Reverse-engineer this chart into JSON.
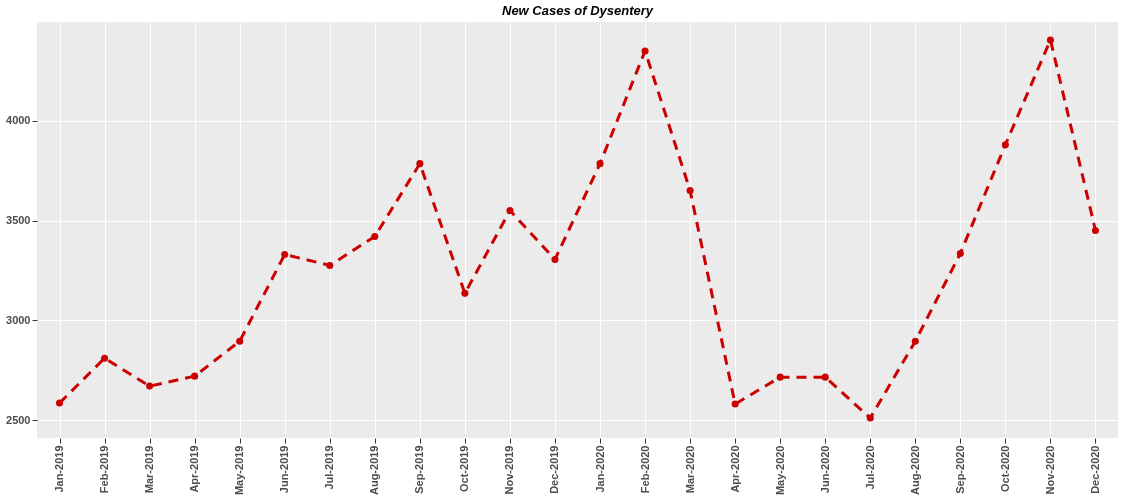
{
  "chart_data": {
    "type": "line",
    "title": "New Cases of Dysentery",
    "categories": [
      "Jan-2019",
      "Feb-2019",
      "Mar-2019",
      "Apr-2019",
      "May-2019",
      "Jun-2019",
      "Jul-2019",
      "Aug-2019",
      "Sep-2019",
      "Oct-2019",
      "Nov-2019",
      "Dec-2019",
      "Jan-2020",
      "Feb-2020",
      "Mar-2020",
      "Apr-2020",
      "May-2020",
      "Jun-2020",
      "Jul-2020",
      "Aug-2020",
      "Sep-2020",
      "Oct-2020",
      "Nov-2020",
      "Dec-2020"
    ],
    "series": [
      {
        "color": "#cc0000",
        "values": [
          2585,
          2810,
          2670,
          2720,
          2895,
          3330,
          3275,
          3420,
          3785,
          3135,
          3550,
          3305,
          3785,
          4350,
          3650,
          2580,
          2715,
          2715,
          2510,
          2895,
          3335,
          3880,
          4405,
          3450
        ]
      }
    ],
    "ylim": [
      2410,
      4495
    ],
    "yticks": [
      2500,
      3000,
      3500,
      4000
    ],
    "grid": true,
    "marker": "circle",
    "line_style": "dashed"
  }
}
